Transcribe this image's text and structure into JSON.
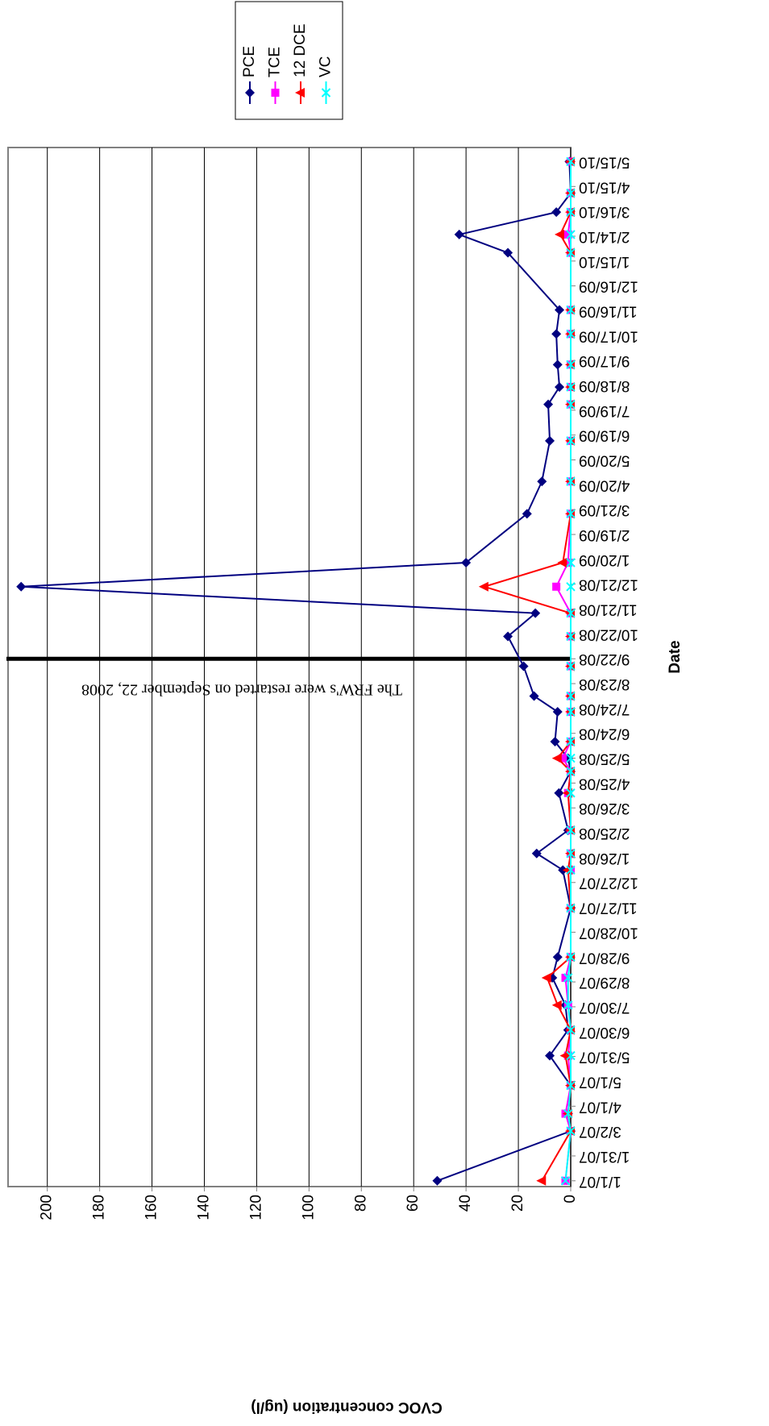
{
  "chart_data": {
    "type": "line",
    "y_label": "CVOC concentration (ug/l)",
    "x_label": "Date",
    "x": [
      "1/1/07",
      "3/2/07",
      "3/23/07",
      "4/26/07",
      "6/1/07",
      "7/2/07",
      "8/1/07",
      "9/3/07",
      "9/28/07",
      "11/26/07",
      "1/11/08",
      "1/31/08",
      "2/28/08",
      "4/13/08",
      "5/9/08",
      "5/25/08",
      "6/14/08",
      "7/20/08",
      "8/8/08",
      "9/13/08",
      "10/19/08",
      "11/16/08",
      "12/18/08",
      "1/16/09",
      "3/16/09",
      "4/24/09",
      "6/12/09",
      "7/26/09",
      "8/16/09",
      "9/12/09",
      "10/19/09",
      "11/17/09",
      "1/25/10",
      "2/16/10",
      "3/15/10",
      "4/7/10",
      "5/15/10"
    ],
    "series": [
      {
        "name": "PCE",
        "color": "#000080",
        "marker": "diamond",
        "values": [
          51,
          0,
          1,
          0,
          8,
          1,
          2,
          7,
          5,
          0,
          3,
          13,
          1,
          4.5,
          0,
          1,
          6,
          5,
          14,
          18,
          24,
          13.5,
          210,
          40,
          16.7,
          11,
          8,
          8.6,
          4.3,
          5,
          5.5,
          4.3,
          24,
          42.6,
          5.5,
          0,
          0.5
        ]
      },
      {
        "name": "TCE",
        "color": "#ff00ff",
        "marker": "square",
        "values": [
          2,
          0,
          2,
          0,
          1,
          0,
          1,
          2,
          0,
          0,
          0,
          0,
          0,
          1,
          0,
          3,
          0,
          0,
          0,
          0,
          0,
          0,
          5.5,
          1,
          0,
          0,
          0,
          0,
          0,
          0,
          0,
          0,
          0,
          1,
          0,
          0,
          0
        ]
      },
      {
        "name": "12 DCE",
        "color": "#ff0000",
        "marker": "triangle",
        "values": [
          11,
          0,
          1,
          0,
          2,
          0,
          5,
          9,
          0,
          0,
          1,
          0,
          0,
          1,
          0,
          5,
          0,
          0,
          0,
          0,
          0,
          0,
          33,
          3,
          0,
          0,
          0,
          0,
          0,
          0,
          0,
          0,
          0,
          4,
          0,
          0,
          0
        ]
      },
      {
        "name": "VC",
        "color": "#00ffff",
        "marker": "x",
        "values": [
          2,
          0,
          1,
          0,
          0,
          0,
          1,
          1,
          0,
          0,
          0,
          0,
          0,
          0,
          0,
          0,
          0,
          0,
          0,
          0,
          0,
          0,
          0,
          0,
          0,
          0,
          0,
          0,
          0,
          0,
          0,
          0,
          0,
          0,
          0,
          0,
          0
        ]
      }
    ],
    "xlim": [
      "12/25/06",
      "6/1/10"
    ],
    "xticks": [
      "1/1/07",
      "1/31/07",
      "3/2/07",
      "4/1/07",
      "5/1/07",
      "5/31/07",
      "6/30/07",
      "7/30/07",
      "8/29/07",
      "9/28/07",
      "10/28/07",
      "11/27/07",
      "12/27/07",
      "1/26/08",
      "2/25/08",
      "3/26/08",
      "4/25/08",
      "5/25/08",
      "6/24/08",
      "7/24/08",
      "8/23/08",
      "9/22/08",
      "10/22/08",
      "11/21/08",
      "12/21/08",
      "1/20/09",
      "2/19/09",
      "3/21/09",
      "4/20/09",
      "5/20/09",
      "6/19/09",
      "7/19/09",
      "8/18/09",
      "9/17/09",
      "10/17/09",
      "11/16/09",
      "12/16/09",
      "1/15/10",
      "2/14/10",
      "3/16/10",
      "4/15/10",
      "5/15/10"
    ],
    "ylim": [
      0,
      215
    ],
    "yticks": [
      0,
      20,
      40,
      60,
      80,
      100,
      120,
      140,
      160,
      180,
      200
    ],
    "grid": true,
    "legend": "right",
    "annotations": [
      {
        "text": "The FRW's were restarted on September 22, 2008",
        "x": "9/22/08"
      }
    ]
  }
}
